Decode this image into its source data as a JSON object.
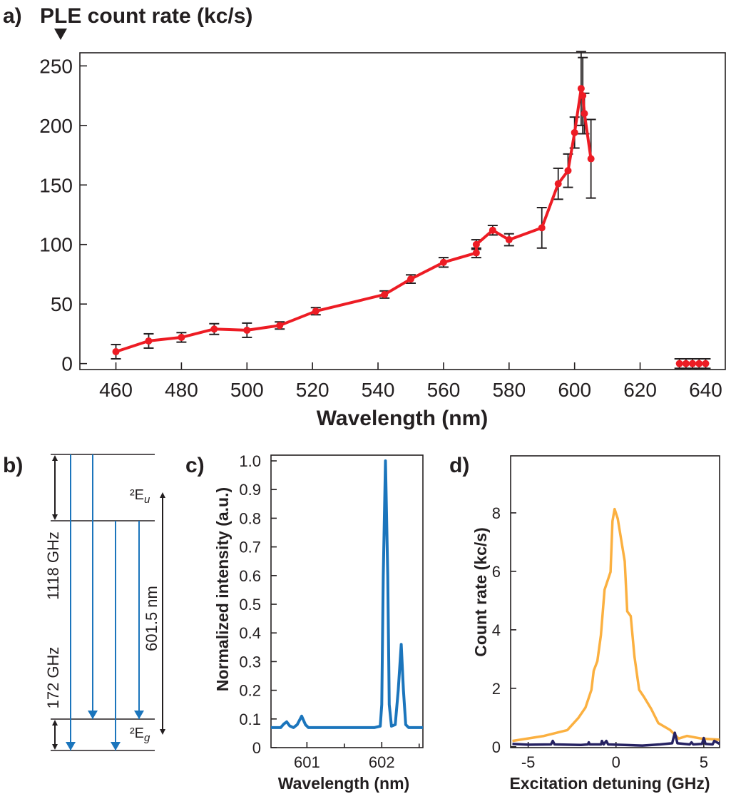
{
  "panel_labels": {
    "a": "a)",
    "b": "b)",
    "c": "c)",
    "d": "d)"
  },
  "chart_data": [
    {
      "id": "a",
      "type": "line",
      "title": "PLE count rate (kc/s)",
      "xlabel": "Wavelength (nm)",
      "ylabel": "",
      "xlim": [
        449,
        646
      ],
      "ylim": [
        -5,
        261
      ],
      "xticks": [
        460,
        480,
        500,
        520,
        540,
        560,
        580,
        600,
        620,
        640
      ],
      "yticks": [
        0,
        50,
        100,
        150,
        200,
        250
      ],
      "grid": false,
      "color": "#ed1c24",
      "errorbar_color": "#231f20",
      "series": [
        {
          "connected": true,
          "x": [
            460,
            470,
            480,
            490,
            500,
            510,
            521,
            542,
            550,
            560,
            570,
            570,
            575,
            580,
            590,
            595,
            598,
            600,
            602,
            602.5,
            603,
            605
          ],
          "y": [
            10,
            19,
            22,
            29,
            28,
            32,
            44,
            58,
            71,
            85,
            93,
            100,
            112,
            104,
            114,
            151,
            162,
            194,
            231,
            225,
            210,
            172
          ],
          "err": [
            6,
            6,
            4,
            4.5,
            6,
            3,
            3,
            3,
            3.5,
            4,
            4,
            4,
            4,
            5,
            17,
            13,
            14,
            13,
            31,
            32,
            17,
            33
          ]
        },
        {
          "connected": false,
          "x": [
            632,
            634,
            636,
            638,
            640
          ],
          "y": [
            0,
            0,
            0,
            0,
            0
          ],
          "err": [
            4,
            4,
            4,
            4,
            4
          ]
        }
      ]
    },
    {
      "id": "c",
      "type": "line",
      "xlabel": "Wavelength (nm)",
      "ylabel": "Normalized intensity (a.u.)",
      "xlim": [
        600.52,
        602.55
      ],
      "ylim": [
        0,
        1.02
      ],
      "xticks": [
        601,
        602
      ],
      "xminor": [
        601.5,
        602.5
      ],
      "yticks": [
        0,
        0.1,
        0.2,
        0.3,
        0.4,
        0.5,
        0.6,
        0.7,
        0.8,
        0.9,
        1.0
      ],
      "ytick_labels": [
        "0",
        "0.1",
        "0.2",
        "0.3",
        "0.4",
        "0.5",
        "0.6",
        "0.7",
        "0.8",
        "0.9",
        "1.0"
      ],
      "grid": false,
      "color": "#1b75bc",
      "series": [
        {
          "x": [
            600.52,
            600.65,
            600.69,
            600.73,
            600.77,
            600.82,
            600.87,
            600.93,
            600.98,
            601.02,
            601.9,
            601.98,
            602.0,
            602.02,
            602.05,
            602.08,
            602.1,
            602.13,
            602.18,
            602.22,
            602.26,
            602.29,
            602.32,
            602.36,
            602.55
          ],
          "y": [
            0.07,
            0.07,
            0.082,
            0.09,
            0.076,
            0.07,
            0.08,
            0.11,
            0.08,
            0.07,
            0.07,
            0.075,
            0.15,
            0.6,
            1.0,
            0.6,
            0.15,
            0.075,
            0.08,
            0.2,
            0.36,
            0.2,
            0.08,
            0.07,
            0.07
          ]
        }
      ]
    },
    {
      "id": "d",
      "type": "line",
      "xlabel": "Excitation detuning (GHz)",
      "ylabel": "Count rate (kc/s)",
      "xlim": [
        -6,
        5.9
      ],
      "ylim": [
        -0.03,
        9.95
      ],
      "xticks": [
        -5,
        0,
        5
      ],
      "yticks": [
        0,
        2,
        4,
        6,
        8
      ],
      "grid": false,
      "series": [
        {
          "color": "#fbb040",
          "x": [
            -5.9,
            -4.1,
            -2.77,
            -2.15,
            -1.74,
            -1.4,
            -1.27,
            -1.06,
            -0.86,
            -0.65,
            -0.31,
            -0.2,
            -0.08,
            0.1,
            0.5,
            0.64,
            0.84,
            1.05,
            1.32,
            1.6,
            2.0,
            2.41,
            3.09,
            3.57,
            4.05,
            4.86,
            5.89
          ],
          "y": [
            0.2,
            0.37,
            0.57,
            0.98,
            1.34,
            1.95,
            2.6,
            2.93,
            3.82,
            5.37,
            5.98,
            7.72,
            8.13,
            7.8,
            6.34,
            4.63,
            4.47,
            3.09,
            1.95,
            1.7,
            1.3,
            0.81,
            0.57,
            0.28,
            0.37,
            0.28,
            0.24
          ]
        },
        {
          "color": "#262262",
          "x": [
            -5.9,
            -5.0,
            -3.7,
            -3.6,
            -3.5,
            -2.0,
            -1.6,
            -1.55,
            -1.5,
            -0.85,
            -0.8,
            -0.7,
            -0.55,
            -0.45,
            0.5,
            1.5,
            2.5,
            3.2,
            3.35,
            3.5,
            4.2,
            4.3,
            4.4,
            4.9,
            5.0,
            5.1,
            5.5,
            5.6,
            5.9
          ],
          "y": [
            0.1,
            0.07,
            0.08,
            0.2,
            0.08,
            0.06,
            0.08,
            0.15,
            0.08,
            0.08,
            0.2,
            0.08,
            0.2,
            0.08,
            0.06,
            0.04,
            0.08,
            0.12,
            0.48,
            0.12,
            0.08,
            0.15,
            0.08,
            0.1,
            0.3,
            0.1,
            0.08,
            0.2,
            0.1
          ]
        }
      ]
    }
  ],
  "diagram_b": {
    "label_1118": "1118 GHz",
    "label_172": "172 GHz",
    "label_wavelength": "601.5 nm",
    "level_upper": {
      "base": "²E",
      "sub": "u"
    },
    "level_lower": {
      "base": "²E",
      "sub": "g"
    },
    "arrow_color": "#1b75bc"
  }
}
